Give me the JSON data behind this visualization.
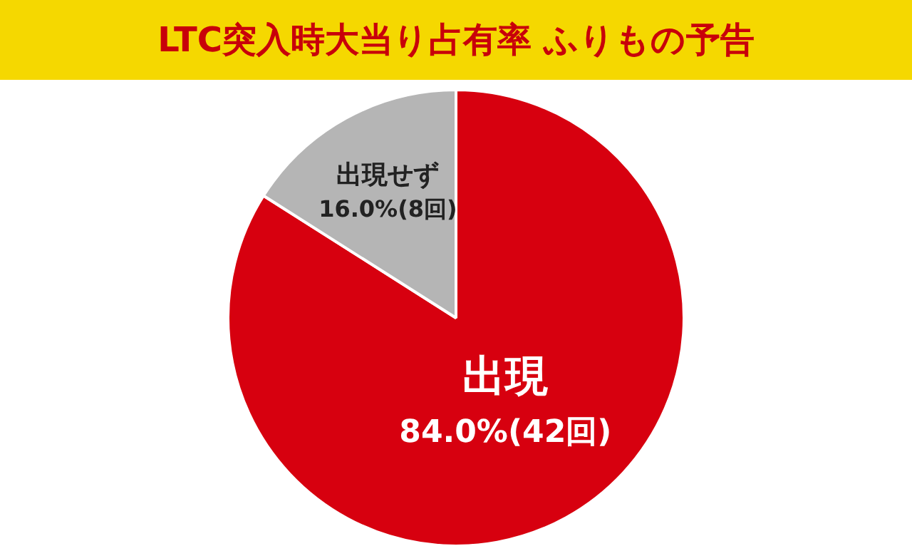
{
  "chart_data": {
    "type": "pie",
    "title": "LTC突入時大当り占有率 ふりもの予告",
    "categories": [
      "出現",
      "出現せず"
    ],
    "values": [
      84.0,
      16.0
    ],
    "value_labels": [
      "84.0%(42回)",
      "16.0%(8回)"
    ],
    "colors": [
      "#d7000f",
      "#b5b5b5"
    ],
    "legend": false
  }
}
